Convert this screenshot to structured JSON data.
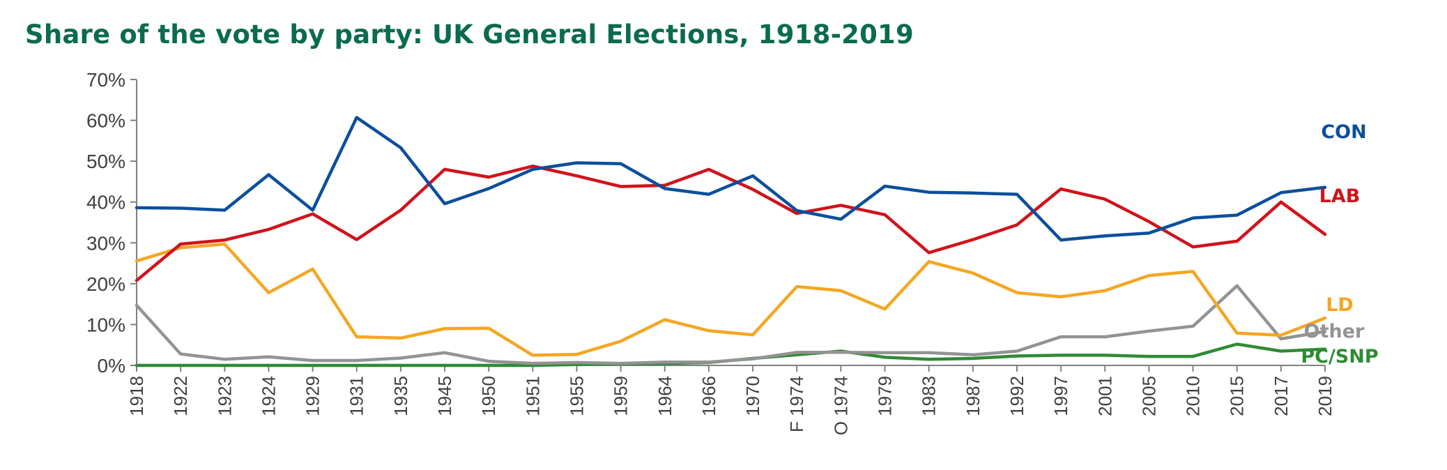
{
  "chart_data": {
    "type": "line",
    "title": "Share of the vote by party: UK General Elections, 1918-2019",
    "xlabel": "",
    "ylabel": "",
    "ylim": [
      0,
      70
    ],
    "yticks": [
      "0%",
      "10%",
      "20%",
      "30%",
      "40%",
      "50%",
      "60%",
      "70%"
    ],
    "grid": false,
    "legend": "inline labels at right end of lines",
    "categories": [
      "1918",
      "1922",
      "1923",
      "1924",
      "1929",
      "1931",
      "1935",
      "1945",
      "1950",
      "1951",
      "1955",
      "1959",
      "1964",
      "1966",
      "1970",
      "F 1974",
      "O 1974",
      "1979",
      "1983",
      "1987",
      "1992",
      "1997",
      "2001",
      "2005",
      "2010",
      "2015",
      "2017",
      "2019"
    ],
    "series": [
      {
        "name": "CON",
        "color": "#0b4f9c",
        "values": [
          38.6,
          38.5,
          38.0,
          46.7,
          38.0,
          60.7,
          53.3,
          39.6,
          43.3,
          48.0,
          49.6,
          49.4,
          43.3,
          41.9,
          46.4,
          37.9,
          35.8,
          43.9,
          42.4,
          42.2,
          41.9,
          30.7,
          31.7,
          32.4,
          36.1,
          36.8,
          42.3,
          43.6
        ]
      },
      {
        "name": "LAB",
        "color": "#d0131b",
        "values": [
          20.8,
          29.7,
          30.7,
          33.3,
          37.1,
          30.8,
          38.0,
          48.0,
          46.1,
          48.8,
          46.4,
          43.8,
          44.1,
          48.0,
          43.1,
          37.2,
          39.2,
          36.9,
          27.6,
          30.8,
          34.4,
          43.2,
          40.7,
          35.2,
          29.0,
          30.4,
          40.0,
          32.1
        ]
      },
      {
        "name": "LD",
        "color": "#f5a623",
        "values": [
          25.6,
          28.8,
          29.7,
          17.8,
          23.6,
          7.0,
          6.7,
          9.0,
          9.1,
          2.5,
          2.7,
          5.9,
          11.2,
          8.5,
          7.5,
          19.3,
          18.3,
          13.8,
          25.4,
          22.6,
          17.8,
          16.8,
          18.3,
          22.0,
          23.0,
          7.9,
          7.4,
          11.6
        ]
      },
      {
        "name": "Other",
        "color": "#939393",
        "values": [
          14.7,
          2.8,
          1.5,
          2.1,
          1.2,
          1.2,
          1.8,
          3.1,
          1.0,
          0.5,
          0.7,
          0.5,
          0.8,
          0.8,
          1.6,
          3.2,
          3.2,
          3.1,
          3.1,
          2.6,
          3.5,
          7.0,
          7.0,
          8.4,
          9.6,
          19.5,
          6.5,
          8.3
        ]
      },
      {
        "name": "PC/SNP",
        "color": "#2e8b35",
        "values": [
          0.0,
          0.0,
          0.0,
          0.0,
          0.0,
          0.0,
          0.0,
          0.0,
          0.0,
          0.0,
          0.2,
          0.4,
          0.5,
          0.7,
          1.7,
          2.6,
          3.5,
          2.0,
          1.5,
          1.7,
          2.3,
          2.5,
          2.5,
          2.2,
          2.2,
          5.2,
          3.5,
          4.0
        ]
      }
    ]
  }
}
